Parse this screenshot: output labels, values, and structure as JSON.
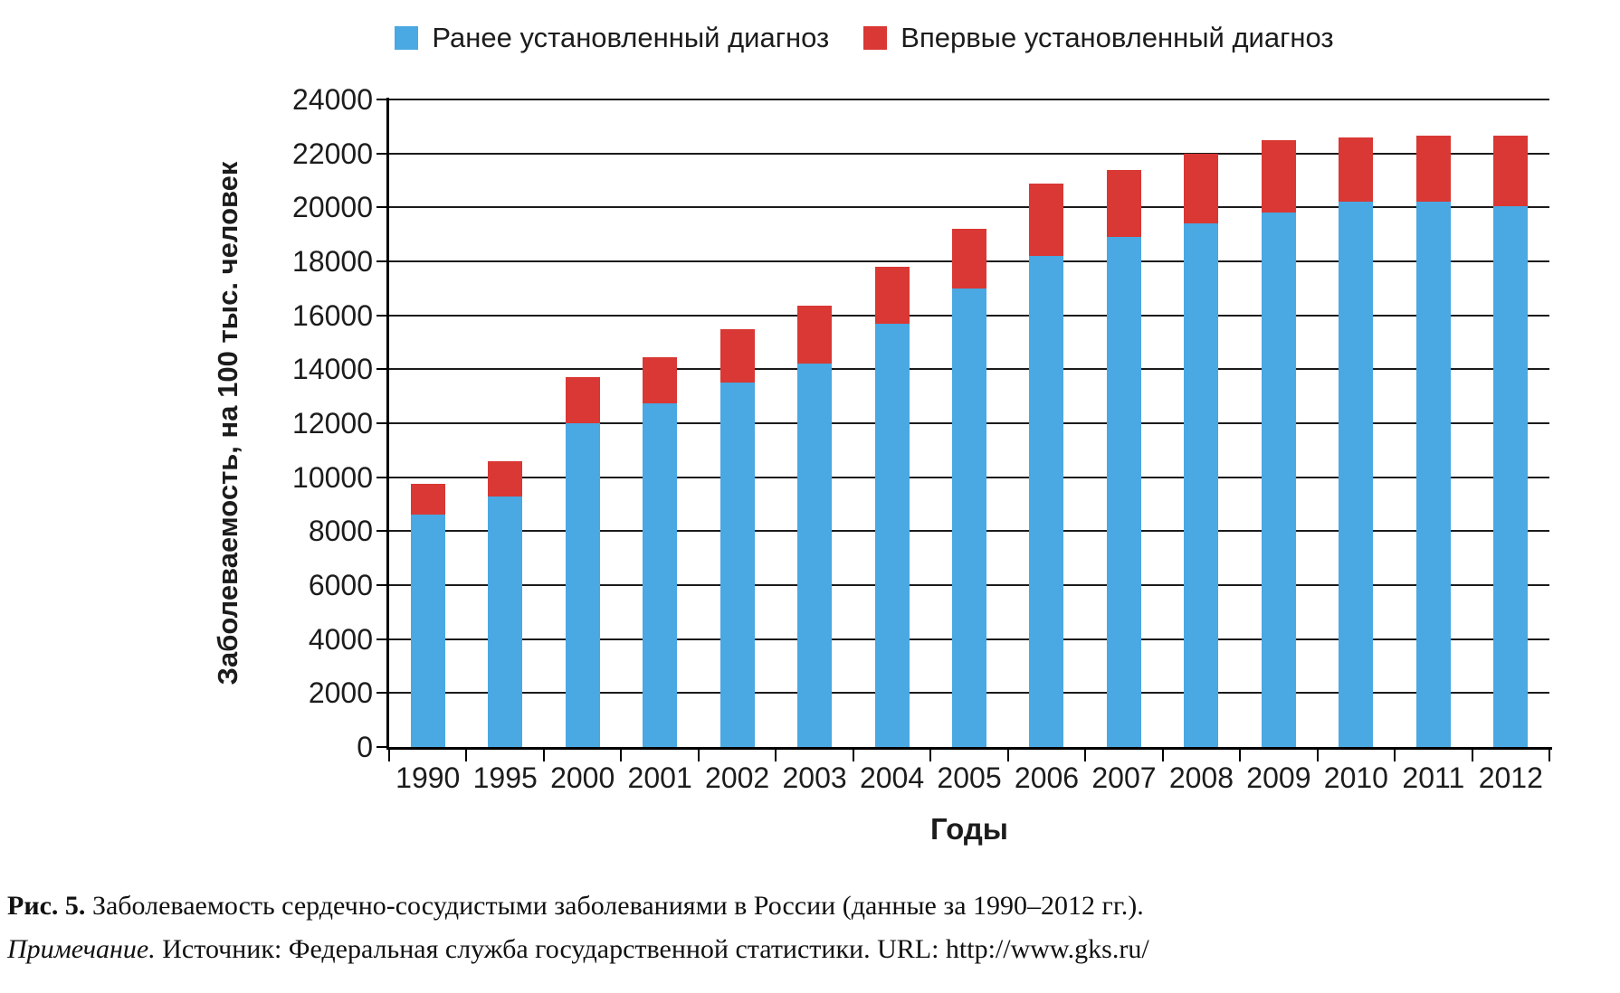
{
  "legend": {
    "items": [
      {
        "label": "Ранее установленный диагноз",
        "color": "#4AA8E2"
      },
      {
        "label": "Впервые установленный диагноз",
        "color": "#D93834"
      }
    ]
  },
  "axes": {
    "ylabel": "Заболеваемость, на 100 тыс. человек",
    "xlabel": "Годы"
  },
  "caption": {
    "line1_prefix": "Рис. 5.",
    "line1_text": " Заболеваемость сердечно-сосудистыми заболеваниями в России (данные за 1990–2012 гг.).",
    "line2_prefix": "Примечание.",
    "line2_text": " Источник: Федеральная служба государственной статистики. URL: http://www.gks.ru/"
  },
  "chart_data": {
    "type": "bar",
    "stacked": true,
    "title": "",
    "xlabel": "Годы",
    "ylabel": "Заболеваемость, на 100 тыс. человек",
    "ylim": [
      0,
      24000
    ],
    "ytick_step": 2000,
    "grid": true,
    "legend_position": "top",
    "categories": [
      "1990",
      "1995",
      "2000",
      "2001",
      "2002",
      "2003",
      "2004",
      "2005",
      "2006",
      "2007",
      "2008",
      "2009",
      "2010",
      "2011",
      "2012"
    ],
    "series": [
      {
        "name": "Ранее установленный диагноз",
        "color": "#4AA8E2",
        "values": [
          8600,
          9300,
          12000,
          12750,
          13500,
          14200,
          15700,
          17000,
          18200,
          18900,
          19400,
          19800,
          20200,
          20200,
          20050
        ]
      },
      {
        "name": "Впервые установленный диагноз",
        "color": "#D93834",
        "values": [
          1150,
          1300,
          1700,
          1700,
          2000,
          2150,
          2100,
          2200,
          2700,
          2500,
          2600,
          2700,
          2400,
          2450,
          2600
        ]
      }
    ],
    "totals": [
      9750,
      10600,
      13700,
      14450,
      15500,
      16350,
      17800,
      19200,
      20900,
      21400,
      22000,
      22500,
      22600,
      22650,
      22650
    ]
  }
}
